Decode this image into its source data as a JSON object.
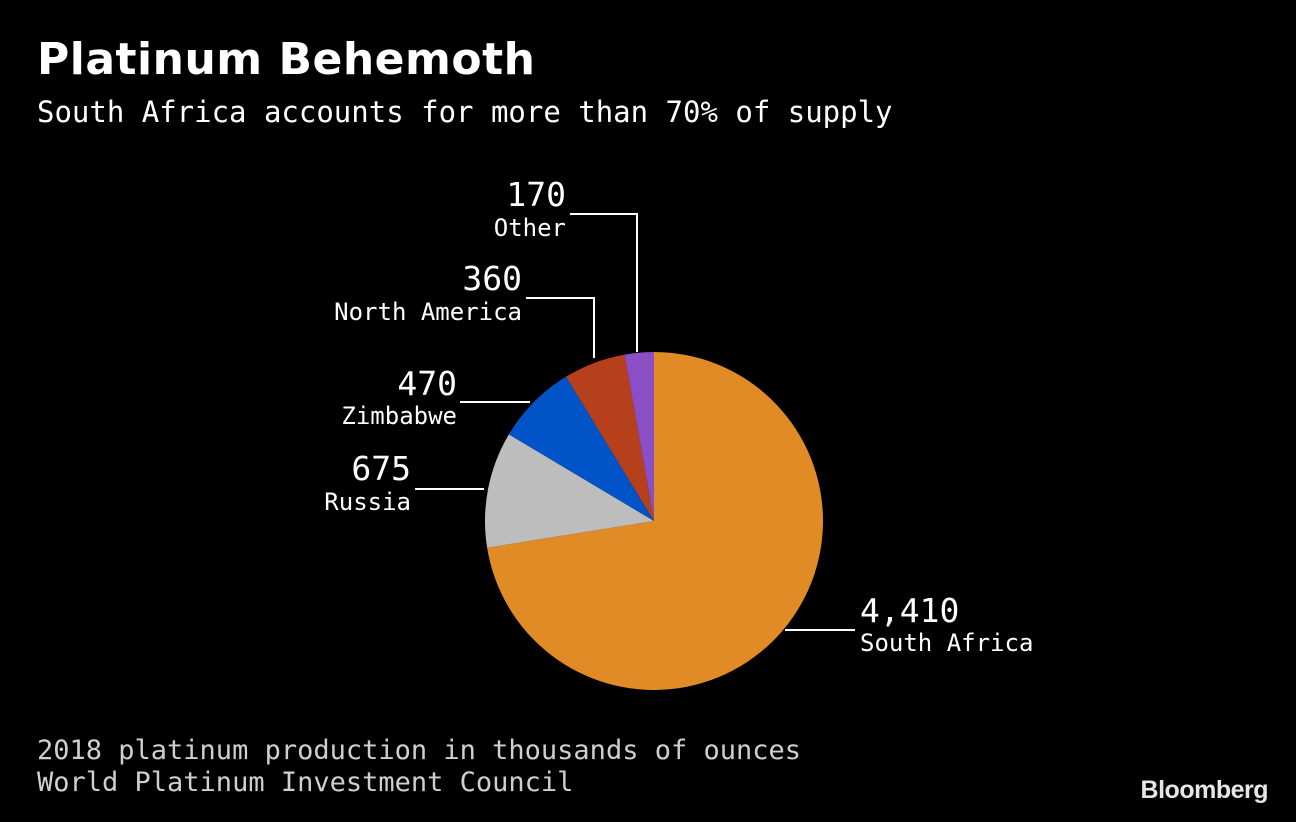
{
  "header": {
    "title": "Platinum Behemoth",
    "subtitle": "South Africa accounts for more than 70% of supply"
  },
  "footer": {
    "note": "2018 platinum production in thousands of ounces",
    "source": "World Platinum Investment Council",
    "brand": "Bloomberg"
  },
  "chart_data": {
    "type": "pie",
    "title": "Platinum Behemoth",
    "subtitle": "South Africa accounts for more than 70% of supply",
    "start": "12 o'clock, clockwise",
    "slices": [
      {
        "label": "South Africa",
        "value": 4410,
        "value_label": "4,410",
        "color": "#e08b26"
      },
      {
        "label": "Russia",
        "value": 675,
        "value_label": "675",
        "color": "#bdbdbd"
      },
      {
        "label": "Zimbabwe",
        "value": 470,
        "value_label": "470",
        "color": "#0054c8"
      },
      {
        "label": "North America",
        "value": 360,
        "value_label": "360",
        "color": "#b6401c"
      },
      {
        "label": "Other",
        "value": 170,
        "value_label": "170",
        "color": "#8a4fc4"
      }
    ]
  }
}
